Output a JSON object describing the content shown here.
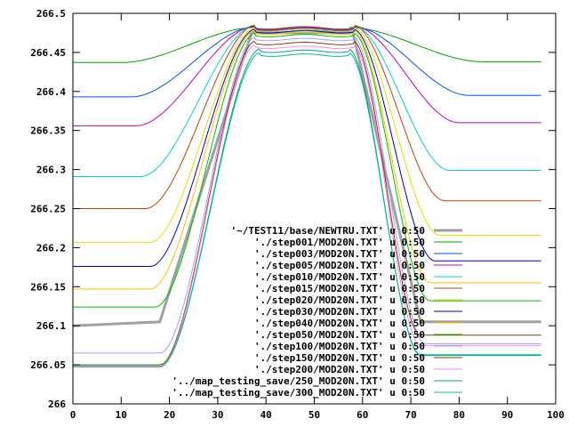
{
  "chart_data": {
    "type": "line",
    "title": "",
    "xlabel": "",
    "ylabel": "",
    "xlim": [
      0,
      100
    ],
    "ylim": [
      266,
      266.5
    ],
    "xticks": [
      0,
      10,
      20,
      30,
      40,
      50,
      60,
      70,
      80,
      90,
      100
    ],
    "xtick_labels": [
      "0",
      "10",
      "20",
      "30",
      "40",
      "50",
      "60",
      "70",
      "80",
      "90",
      "100"
    ],
    "yticks": [
      266,
      266.05,
      266.1,
      266.15,
      266.2,
      266.25,
      266.3,
      266.35,
      266.4,
      266.45,
      266.5
    ],
    "ytick_labels": [
      "266",
      "266.05",
      "266.1",
      "266.15",
      "266.2",
      "266.25",
      "266.3",
      "266.35",
      "266.4",
      "266.45",
      "266.5"
    ],
    "grid": false,
    "legend_position": "lower-right",
    "series": [
      {
        "name": "'~/TEST11/base/NEWTRU.TXT' u 0:50",
        "color": "#a0a0a0",
        "base_left": 266.1,
        "base_right": 266.105,
        "peak": 266.475,
        "x1": 18,
        "x2": 37,
        "x3": 58,
        "x4": 72,
        "shape": "linear"
      },
      {
        "name": "'./step001/MOD20N.TXT' u 0:50",
        "color": "#00a000",
        "base_left": 266.437,
        "base_right": 266.438,
        "peak": 266.482,
        "x1": 10,
        "x2": 38,
        "x3": 57,
        "x4": 85,
        "shape": "smooth"
      },
      {
        "name": "'./step003/MOD20N.TXT' u 0:50",
        "color": "#0050ff",
        "base_left": 266.393,
        "base_right": 266.395,
        "peak": 266.483,
        "x1": 12,
        "x2": 38,
        "x3": 58,
        "x4": 82,
        "shape": "smooth"
      },
      {
        "name": "'./step005/MOD20N.TXT' u 0:50",
        "color": "#c000c0",
        "base_left": 266.356,
        "base_right": 266.36,
        "peak": 266.484,
        "x1": 13,
        "x2": 38,
        "x3": 58,
        "x4": 80,
        "shape": "smooth"
      },
      {
        "name": "'./step010/MOD20N.TXT' u 0:50",
        "color": "#00d0d0",
        "base_left": 266.291,
        "base_right": 266.299,
        "peak": 266.485,
        "x1": 14,
        "x2": 38,
        "x3": 58,
        "x4": 78,
        "shape": "smooth"
      },
      {
        "name": "'./step015/MOD20N.TXT' u 0:50",
        "color": "#c04000",
        "base_left": 266.25,
        "base_right": 266.26,
        "peak": 266.485,
        "x1": 15,
        "x2": 38,
        "x3": 58,
        "x4": 77,
        "shape": "smooth"
      },
      {
        "name": "'./step020/MOD20N.TXT' u 0:50",
        "color": "#e0e000",
        "base_left": 266.207,
        "base_right": 266.216,
        "peak": 266.482,
        "x1": 16,
        "x2": 38,
        "x3": 58,
        "x4": 76,
        "shape": "smooth"
      },
      {
        "name": "'./step030/MOD20N.TXT' u 0:50",
        "color": "#0000c0",
        "base_left": 266.176,
        "base_right": 266.183,
        "peak": 266.48,
        "x1": 16,
        "x2": 38,
        "x3": 58,
        "x4": 75,
        "shape": "smooth"
      },
      {
        "name": "'./step040/MOD20N.TXT' u 0:50",
        "color": "#ffc000",
        "base_left": 266.147,
        "base_right": 266.155,
        "peak": 266.478,
        "x1": 16,
        "x2": 38,
        "x3": 58,
        "x4": 74,
        "shape": "smooth"
      },
      {
        "name": "'./step050/MOD20N.TXT' u 0:50",
        "color": "#00c000",
        "base_left": 266.124,
        "base_right": 266.132,
        "peak": 266.475,
        "x1": 17,
        "x2": 38,
        "x3": 58,
        "x4": 74,
        "shape": "smooth"
      },
      {
        "name": "'./step100/MOD20N.TXT' u 0:50",
        "color": "#a0a0ff",
        "base_left": 266.065,
        "base_right": 266.077,
        "peak": 266.47,
        "x1": 18,
        "x2": 38,
        "x3": 58,
        "x4": 73,
        "shape": "smooth"
      },
      {
        "name": "'./step150/MOD20N.TXT' u 0:50",
        "color": "#804000",
        "base_left": 266.05,
        "base_right": 266.088,
        "peak": 266.465,
        "x1": 18,
        "x2": 38,
        "x3": 58,
        "x4": 72,
        "shape": "smooth"
      },
      {
        "name": "'./step200/MOD20N.TXT' u 0:50",
        "color": "#ff80ff",
        "base_left": 266.047,
        "base_right": 266.075,
        "peak": 266.46,
        "x1": 18,
        "x2": 38,
        "x3": 58,
        "x4": 72,
        "shape": "smooth"
      },
      {
        "name": "'../map_testing_save/250_MOD20N.TXT' u 0:50",
        "color": "#00a0a0",
        "base_left": 266.048,
        "base_right": 266.062,
        "peak": 266.455,
        "x1": 18,
        "x2": 39,
        "x3": 57,
        "x4": 72,
        "shape": "smooth"
      },
      {
        "name": "'../map_testing_save/300_MOD20N.TXT' u 0:50",
        "color": "#00c080",
        "base_left": 266.048,
        "base_right": 266.063,
        "peak": 266.45,
        "x1": 18,
        "x2": 39,
        "x3": 57,
        "x4": 72,
        "shape": "smooth"
      }
    ]
  }
}
